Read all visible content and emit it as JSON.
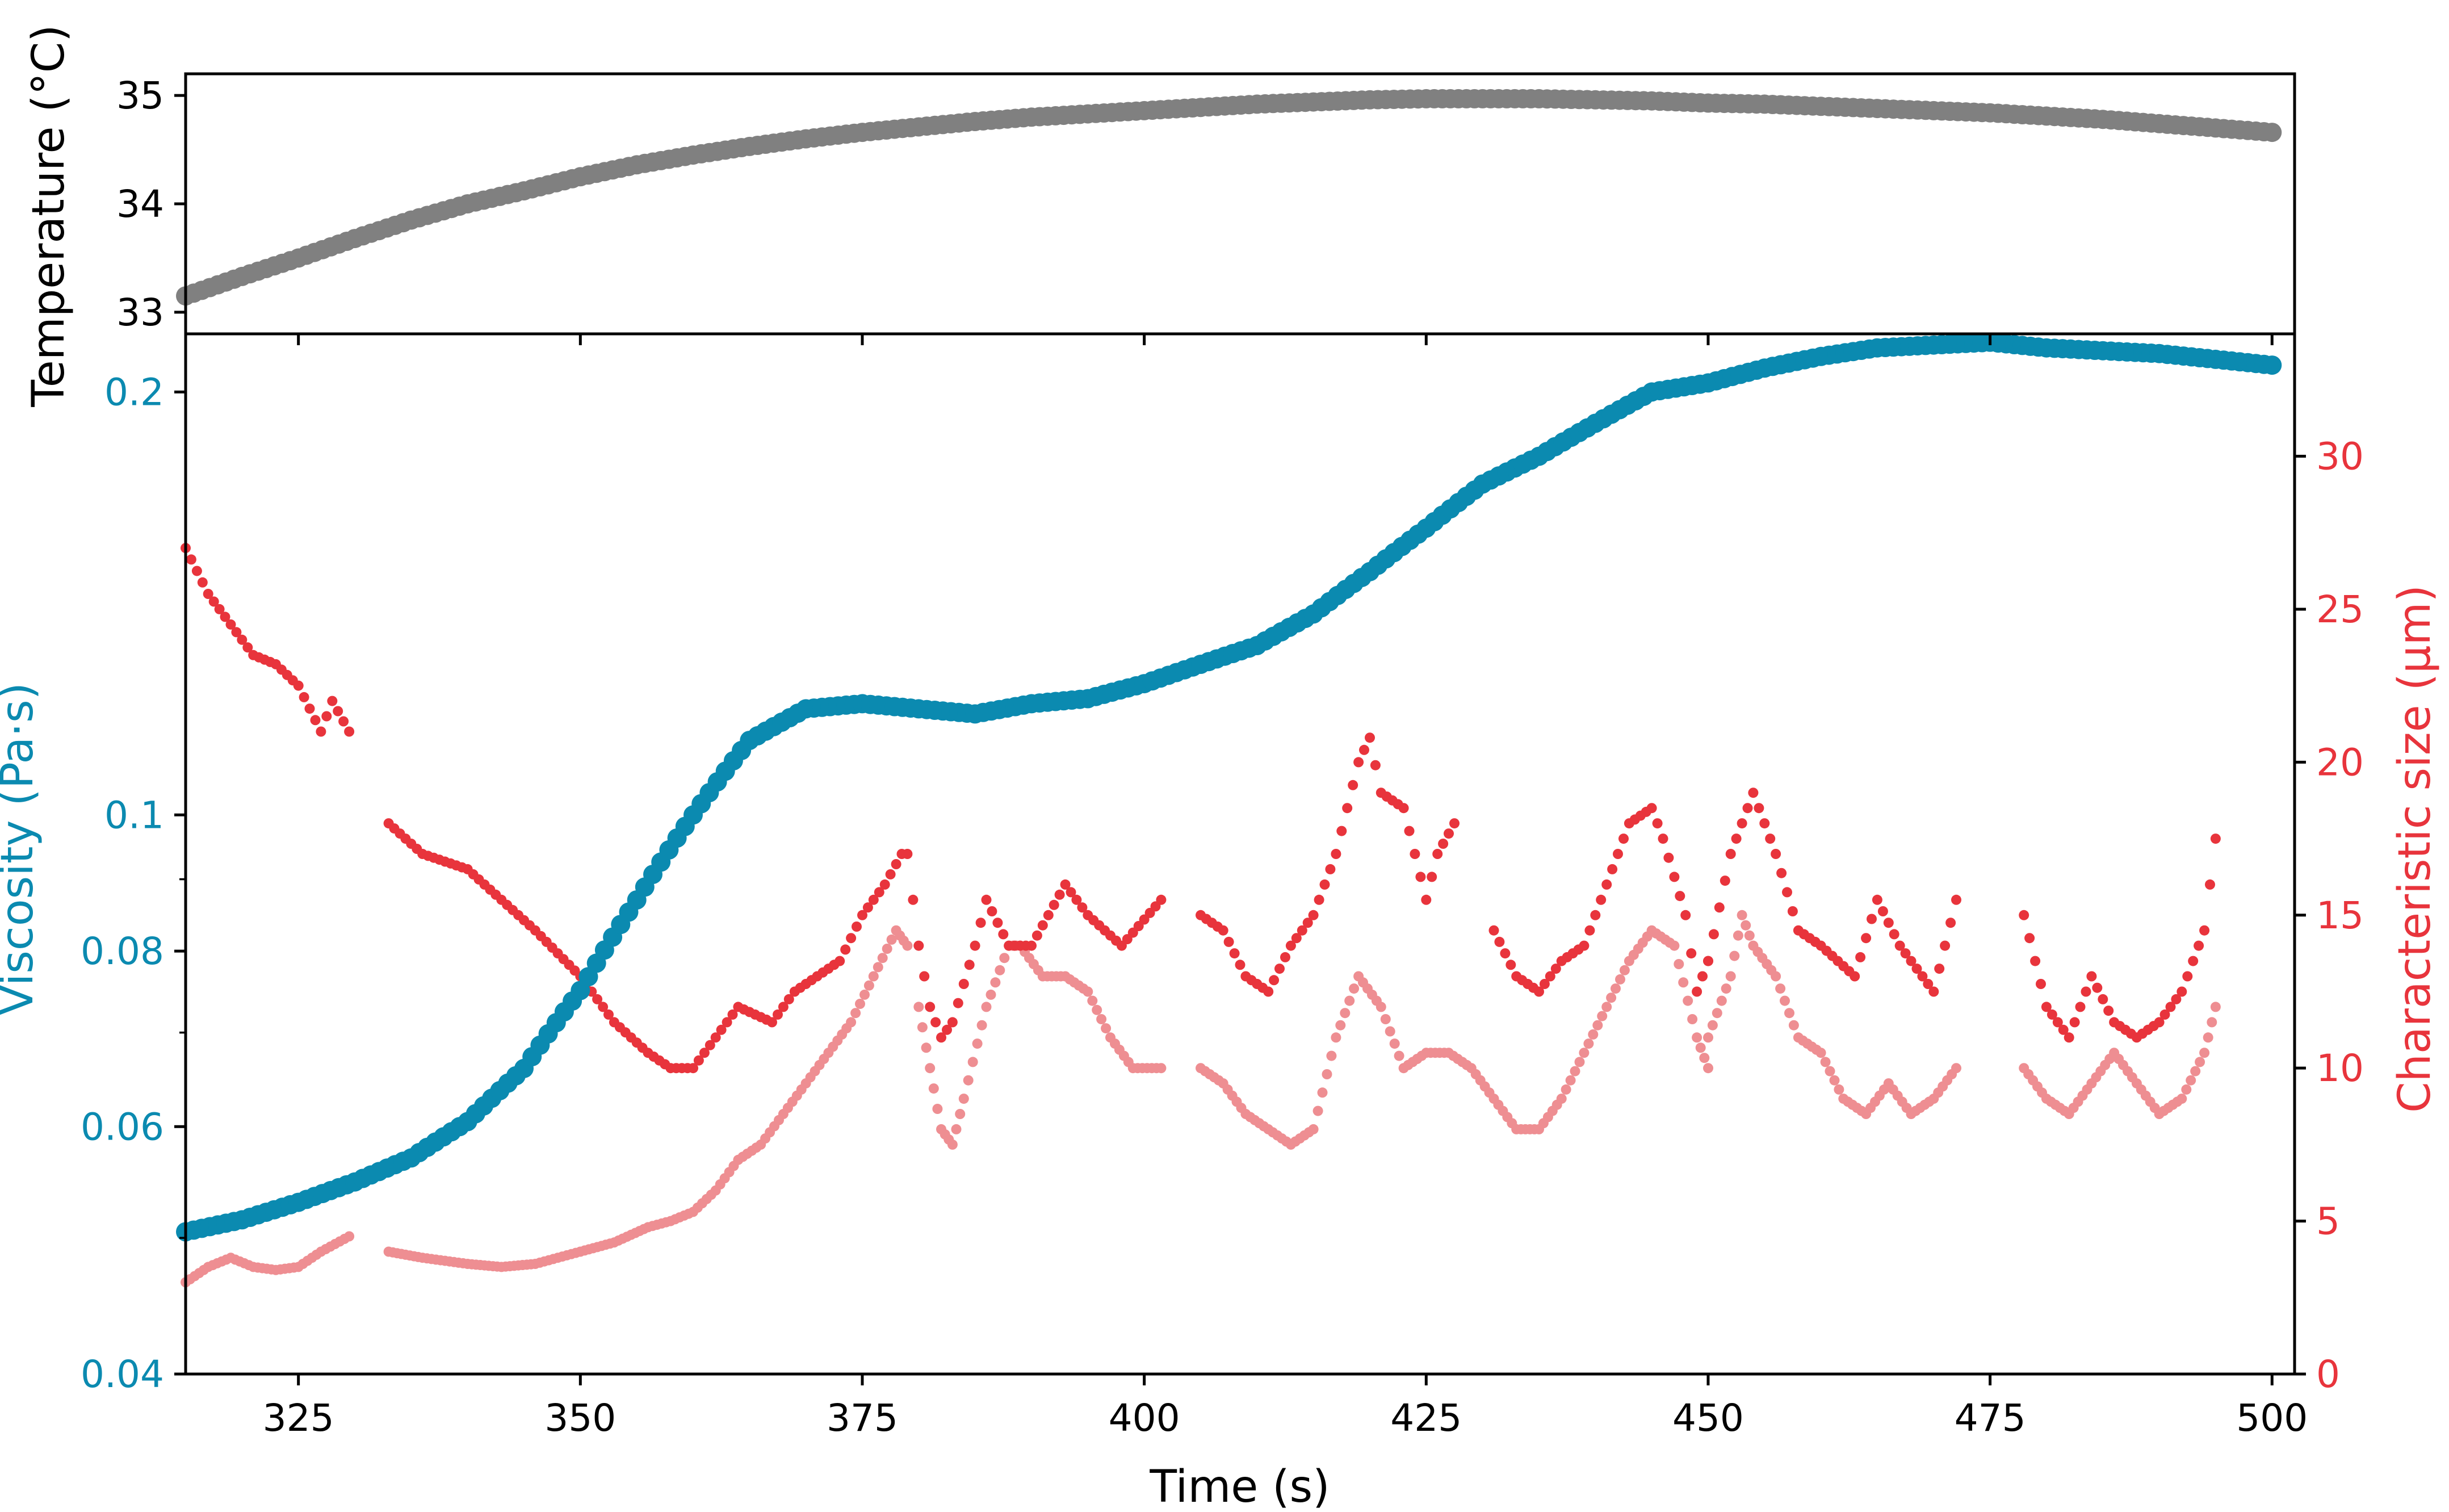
{
  "colors": {
    "temperature": "#808080",
    "viscosity": "#0b8ab0",
    "size_dark": "#e8343c",
    "size_light": "#ee8e92",
    "axis": "#000000"
  },
  "chart_data": [
    {
      "type": "scatter",
      "panel": "top",
      "xlabel": "",
      "ylabel": "Temperature (°C)",
      "xlim": [
        315,
        502
      ],
      "ylim": [
        32.8,
        35.2
      ],
      "yticks": [
        "33",
        "34",
        "35"
      ],
      "series": [
        {
          "color": "#808080",
          "x": [
            315,
            320,
            325,
            330,
            335,
            340,
            345,
            350,
            355,
            360,
            365,
            370,
            375,
            380,
            385,
            390,
            395,
            400,
            405,
            410,
            415,
            420,
            425,
            430,
            435,
            440,
            445,
            450,
            455,
            460,
            465,
            470,
            475,
            480,
            485,
            490,
            495,
            500
          ],
          "y": [
            33.15,
            33.33,
            33.5,
            33.68,
            33.85,
            34.0,
            34.12,
            34.25,
            34.36,
            34.45,
            34.53,
            34.6,
            34.66,
            34.71,
            34.76,
            34.8,
            34.83,
            34.86,
            34.89,
            34.92,
            34.94,
            34.96,
            34.97,
            34.97,
            34.97,
            34.96,
            34.95,
            34.93,
            34.92,
            34.9,
            34.88,
            34.86,
            34.84,
            34.81,
            34.78,
            34.74,
            34.7,
            34.66
          ]
        }
      ]
    },
    {
      "type": "scatter",
      "panel": "bottom",
      "xlabel": "Time (s)",
      "xlim": [
        315,
        502
      ],
      "xticks": [
        "325",
        "350",
        "375",
        "400",
        "425",
        "450",
        "475",
        "500"
      ],
      "y_left": {
        "label": "Viscosity (Pa·s)",
        "scale": "log",
        "ylim": [
          0.04,
          0.22
        ],
        "ticks": [
          "0.04",
          "0.06",
          "0.08",
          "0.1",
          "0.2"
        ]
      },
      "y_right": {
        "label": "Characteristic size (μm)",
        "ylim": [
          0,
          34
        ],
        "ticks": [
          "0",
          "5",
          "10",
          "15",
          "20",
          "25",
          "30"
        ]
      },
      "series": [
        {
          "axis": "left",
          "color": "#0b8ab0",
          "x": [
            315,
            320,
            325,
            330,
            335,
            340,
            345,
            350,
            355,
            360,
            365,
            370,
            375,
            380,
            385,
            390,
            395,
            400,
            405,
            410,
            415,
            420,
            425,
            430,
            435,
            440,
            445,
            450,
            455,
            460,
            465,
            470,
            475,
            480,
            485,
            490,
            495,
            500
          ],
          "y": [
            0.0505,
            0.0515,
            0.053,
            0.0548,
            0.057,
            0.0605,
            0.066,
            0.075,
            0.087,
            0.1,
            0.113,
            0.119,
            0.12,
            0.119,
            0.118,
            0.12,
            0.121,
            0.124,
            0.128,
            0.132,
            0.139,
            0.149,
            0.16,
            0.172,
            0.18,
            0.19,
            0.2,
            0.203,
            0.208,
            0.212,
            0.215,
            0.216,
            0.217,
            0.215,
            0.214,
            0.213,
            0.211,
            0.209
          ]
        },
        {
          "axis": "right",
          "color": "#e8343c",
          "segments": [
            {
              "x": [
                315,
                317,
                319,
                321,
                323,
                325,
                327,
                328,
                329.5
              ],
              "y": [
                27,
                25.5,
                24.5,
                23.5,
                23.2,
                22.5,
                21,
                22,
                21
              ]
            },
            {
              "x": [
                333,
                336,
                340,
                343,
                346,
                350,
                353,
                356,
                358,
                360,
                362,
                364,
                367,
                369,
                371,
                373,
                375,
                377,
                378.5
              ],
              "y": [
                18,
                17,
                16.5,
                15.5,
                14.5,
                13,
                11.5,
                10.5,
                10,
                10,
                11,
                12,
                11.5,
                12.5,
                13,
                13.5,
                15,
                16,
                17
              ]
            },
            {
              "x": [
                379,
                380,
                381,
                382,
                383,
                385,
                386,
                388,
                390,
                393,
                395,
                398,
                401.5
              ],
              "y": [
                17,
                14,
                12,
                11,
                11.5,
                14,
                15.5,
                14,
                14,
                16,
                15,
                14,
                15.5
              ]
            },
            {
              "x": [
                405,
                407,
                409,
                411,
                413,
                415,
                417,
                419,
                420,
                421,
                423,
                425,
                426,
                427.5
              ],
              "y": [
                15,
                14.5,
                13,
                12.5,
                14,
                15,
                17,
                20,
                20.8,
                19,
                18.5,
                15.5,
                17,
                18
              ]
            },
            {
              "x": [
                431,
                433,
                435,
                437,
                439,
                441,
                443,
                445,
                446,
                448,
                449,
                450
              ],
              "y": [
                14.5,
                13,
                12.5,
                13.5,
                14,
                16,
                18,
                18.5,
                17.5,
                15,
                12.5,
                13.5
              ]
            },
            {
              "x": [
                450,
                452,
                454,
                456,
                458,
                460,
                463,
                465,
                467,
                470,
                472
              ],
              "y": [
                13.5,
                17,
                19,
                17,
                14.5,
                14,
                13,
                15.5,
                14,
                12.5,
                15.5
              ]
            },
            {
              "x": [
                478,
                480,
                482,
                484,
                486,
                488,
                490,
                492,
                494,
                495
              ],
              "y": [
                15,
                12,
                11,
                13,
                11.5,
                11,
                11.5,
                12.5,
                14.5,
                17.5
              ]
            }
          ]
        },
        {
          "axis": "right",
          "color": "#ee8e92",
          "segments": [
            {
              "x": [
                315,
                317,
                319,
                321,
                323,
                325,
                327,
                329.5
              ],
              "y": [
                3,
                3.5,
                3.8,
                3.5,
                3.4,
                3.5,
                4,
                4.5
              ]
            },
            {
              "x": [
                333,
                336,
                340,
                343,
                346,
                350,
                353,
                356,
                358,
                360,
                362,
                364,
                366,
                368,
                370,
                372,
                374,
                376,
                378,
                379
              ],
              "y": [
                4,
                3.8,
                3.6,
                3.5,
                3.6,
                4,
                4.3,
                4.8,
                5,
                5.3,
                6,
                7,
                7.5,
                8.5,
                9.5,
                10.5,
                11.5,
                13,
                14.5,
                14
              ]
            },
            {
              "x": [
                380,
                381,
                382,
                383,
                384,
                386,
                388,
                389,
                391,
                393,
                395,
                397,
                399,
                401.5
              ],
              "y": [
                12,
                10,
                8,
                7.5,
                9,
                12,
                14,
                14,
                13,
                13,
                12.5,
                11,
                10,
                10
              ]
            },
            {
              "x": [
                405,
                407,
                409,
                411,
                413,
                415,
                417,
                419,
                421,
                423,
                425,
                427,
                429,
                431,
                433,
                435,
                437,
                439,
                441,
                443,
                445,
                447,
                449,
                450
              ],
              "y": [
                10,
                9.5,
                8.5,
                8,
                7.5,
                8,
                11,
                13,
                12,
                10,
                10.5,
                10.5,
                10,
                9,
                8,
                8,
                9,
                10.5,
                12,
                13.5,
                14.5,
                14,
                11,
                10
              ]
            },
            {
              "x": [
                450,
                452,
                453,
                454,
                456,
                458,
                460,
                462,
                464,
                466,
                468,
                470,
                472
              ],
              "y": [
                11,
                13,
                15,
                14,
                13,
                11,
                10.5,
                9,
                8.5,
                9.5,
                8.5,
                9,
                10
              ]
            },
            {
              "x": [
                478,
                480,
                482,
                484,
                486,
                488,
                490,
                492,
                494,
                495
              ],
              "y": [
                10,
                9,
                8.5,
                9.5,
                10.5,
                9.5,
                8.5,
                9,
                10.5,
                12
              ]
            }
          ]
        }
      ]
    }
  ]
}
